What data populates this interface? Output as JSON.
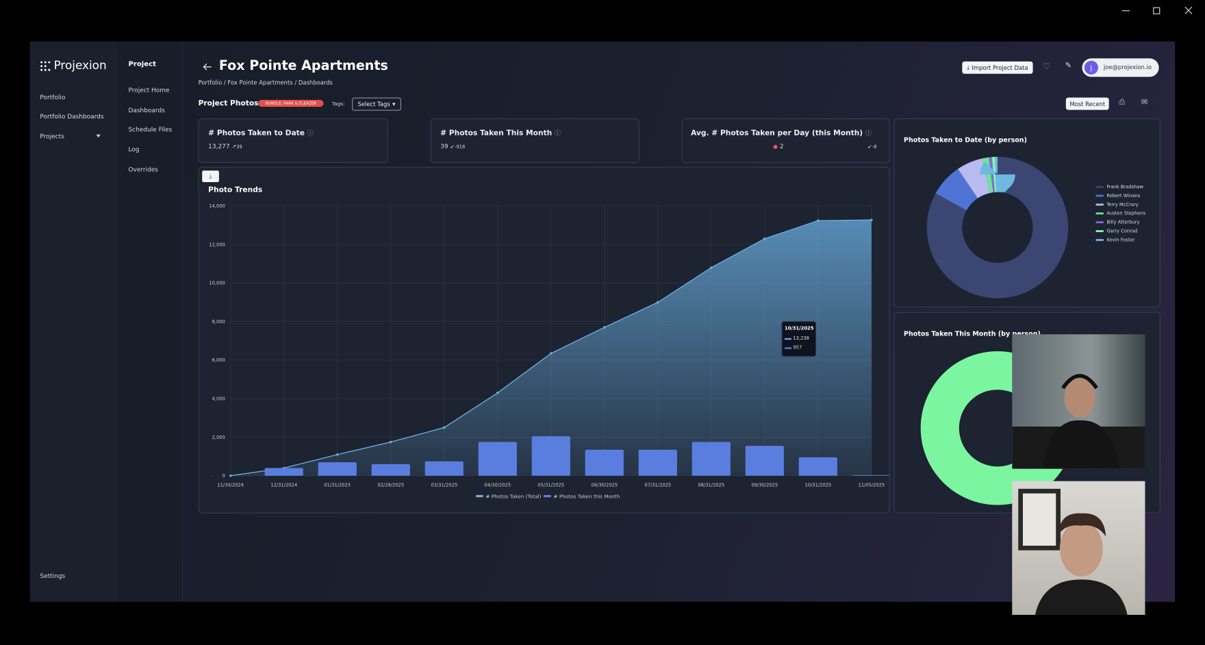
{
  "app": {
    "logo": "Projexion"
  },
  "sidebar": {
    "items": [
      "Portfolio",
      "Portfolio Dashboards",
      "Projects"
    ],
    "footer": "Settings"
  },
  "subnav": {
    "title": "Project",
    "items": [
      "Project Home",
      "Dashboards",
      "Schedule Files",
      "Log",
      "Overrides"
    ]
  },
  "header": {
    "title": "Fox Pointe Apartments",
    "breadcrumb": "Portfolio / Fox Pointe Apartments / Dashboards",
    "import_button": "Import Project Data",
    "user": "joe@projexion.io",
    "avatar": "J"
  },
  "toolbar": {
    "title": "Project Photos",
    "badge": "BUNDLE: PARK & ELEAZER",
    "tags_label": "Tags:",
    "tags_select": "Select Tags",
    "sort_button": "Most Recent"
  },
  "cards": [
    {
      "title": "# Photos Taken to Date",
      "value": "13,277",
      "delta": "39"
    },
    {
      "title": "# Photos Taken This Month",
      "value": "39",
      "delta": "-918"
    },
    {
      "title": "Avg. # Photos Taken per Day (this Month)",
      "value": "2",
      "delta": "-8"
    }
  ],
  "chart_data": [
    {
      "type": "area-bar",
      "title": "Photo Trends",
      "categories": [
        "11/30/2024",
        "12/31/2024",
        "01/31/2025",
        "02/28/2025",
        "03/31/2025",
        "04/30/2025",
        "05/31/2025",
        "06/30/2025",
        "07/31/2025",
        "08/31/2025",
        "09/30/2025",
        "10/31/2025",
        "11/05/2025"
      ],
      "series": [
        {
          "name": "# Photos Taken (Total)",
          "type": "area",
          "color": "#6aaee0",
          "values": [
            0,
            400,
            1100,
            1750,
            2500,
            4300,
            6350,
            7700,
            9000,
            10800,
            12300,
            13238,
            13277
          ]
        },
        {
          "name": "# Photos Taken this Month",
          "type": "bar",
          "color": "#5a7ee0",
          "values": [
            0,
            400,
            700,
            600,
            750,
            1750,
            2050,
            1350,
            1350,
            1750,
            1550,
            957,
            39
          ]
        }
      ],
      "ylim": [
        0,
        14000
      ],
      "yticks": [
        0,
        {
          "value": 2000,
          "label": "2,000"
        },
        {
          "value": 4000,
          "label": "4,000"
        },
        {
          "value": 6000,
          "label": "6,000"
        },
        {
          "value": 8000,
          "label": "8,000"
        },
        {
          "value": 10000,
          "label": "10,000"
        },
        {
          "value": 12000,
          "label": "12,000"
        },
        {
          "value": 14000,
          "label": "14,000"
        }
      ],
      "grid": true,
      "legend": "bottom",
      "tooltip": {
        "title": "10/31/2025",
        "lines": [
          "13,238",
          "957"
        ]
      }
    },
    {
      "type": "pie",
      "title": "Photos Taken to Date (by person)",
      "categories": [
        "Frank Bradshaw",
        "Robert Winans",
        "Terry McCrary",
        "Austen Stephens",
        "Billy Atterbury",
        "Garry Conrad",
        "Kevin Foster"
      ],
      "values": [
        83,
        7.5,
        6,
        1.5,
        0.7,
        0.7,
        0.6
      ],
      "colors": [
        "#3b4672",
        "#4f74d6",
        "#b8baf0",
        "#6fe39a",
        "#7b6fd8",
        "#86f2b4",
        "#6fb8e0"
      ],
      "legend": "right"
    },
    {
      "type": "pie",
      "title": "Photos Taken This Month (by person)",
      "categories": [
        null
      ],
      "values": [
        100
      ],
      "colors": [
        "#7cf5a0"
      ]
    }
  ]
}
